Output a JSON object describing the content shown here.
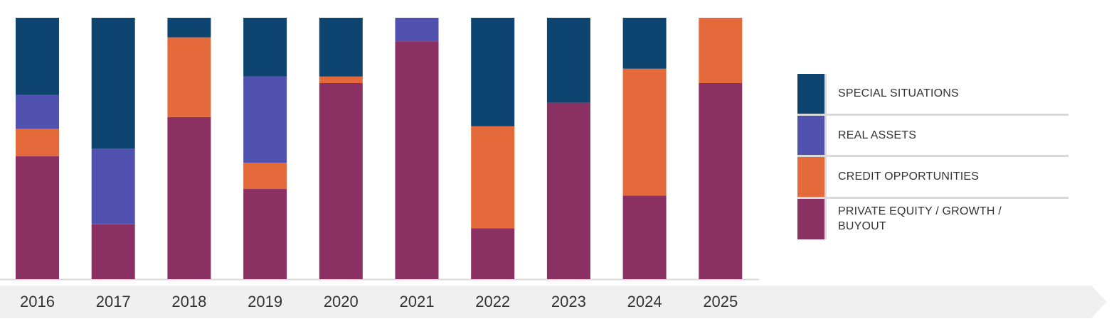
{
  "chart_data": {
    "type": "bar",
    "stacked": true,
    "normalized_to": 100,
    "title": "",
    "xlabel": "",
    "ylabel": "",
    "ylim": [
      0,
      100
    ],
    "grid": false,
    "legend_position": "right",
    "categories": [
      "2016",
      "2017",
      "2018",
      "2019",
      "2020",
      "2021",
      "2022",
      "2023",
      "2024",
      "2025"
    ],
    "series": [
      {
        "name": "PRIVATE EQUITY / GROWTH / BUYOUT",
        "color": "#8b3062",
        "values": [
          47,
          21,
          62,
          34.5,
          75,
          91,
          19.5,
          67.5,
          32,
          75
        ]
      },
      {
        "name": "CREDIT OPPORTUNITIES",
        "color": "#e56a3b",
        "values": [
          10.5,
          0,
          30.5,
          10,
          2.5,
          0,
          39,
          0,
          48.5,
          25
        ]
      },
      {
        "name": "REAL ASSETS",
        "color": "#5152af",
        "values": [
          13,
          29,
          0,
          33,
          0,
          9,
          0,
          0,
          0,
          0
        ]
      },
      {
        "name": "SPECIAL SITUATIONS",
        "color": "#0d4570",
        "values": [
          29.5,
          50,
          7.5,
          22.5,
          22.5,
          0,
          41.5,
          32.5,
          19.5,
          0
        ]
      }
    ]
  },
  "legend": {
    "items": [
      {
        "label": "SPECIAL SITUATIONS",
        "color": "#0d4570"
      },
      {
        "label": "REAL ASSETS",
        "color": "#5152af"
      },
      {
        "label": "CREDIT OPPORTUNITIES",
        "color": "#e56a3b"
      },
      {
        "label": "PRIVATE EQUITY / GROWTH / BUYOUT",
        "color": "#8b3062"
      }
    ]
  },
  "colors": {
    "axis_band": "#f0f0f0",
    "baseline": "#d9d9d9",
    "tick_text": "#333333"
  }
}
